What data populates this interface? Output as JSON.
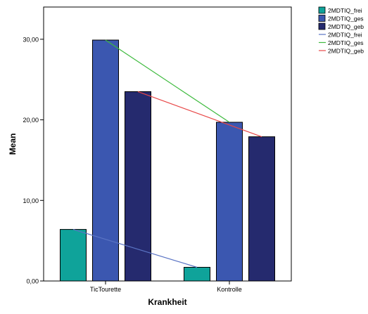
{
  "chart_data": {
    "type": "bar",
    "title": "",
    "xlabel": "Krankheit",
    "ylabel": "Mean",
    "categories": [
      "TicTourette",
      "Kontrolle"
    ],
    "ylim": [
      0,
      34
    ],
    "yticks": [
      0,
      10,
      20,
      30
    ],
    "ytick_labels": [
      "0,00",
      "10,00",
      "20,00",
      "30,00"
    ],
    "grid": false,
    "legend_position": "top-right",
    "series": [
      {
        "name": "2MDTIQ_frei",
        "values": [
          6.4,
          1.7
        ],
        "color": "#0FA39A"
      },
      {
        "name": "2MDTIQ_ges",
        "values": [
          29.9,
          19.7
        ],
        "color": "#3B57B0"
      },
      {
        "name": "2MDTIQ_geb",
        "values": [
          23.5,
          17.9
        ],
        "color": "#252A6E"
      }
    ],
    "lines": [
      {
        "name": "2MDTIQ_frei",
        "values": [
          6.4,
          1.7
        ],
        "color": "#5A74C4"
      },
      {
        "name": "2MDTIQ_ges",
        "values": [
          29.9,
          19.7
        ],
        "color": "#3DBA3D"
      },
      {
        "name": "2MDTIQ_geb",
        "values": [
          23.5,
          17.9
        ],
        "color": "#E84747"
      }
    ]
  }
}
